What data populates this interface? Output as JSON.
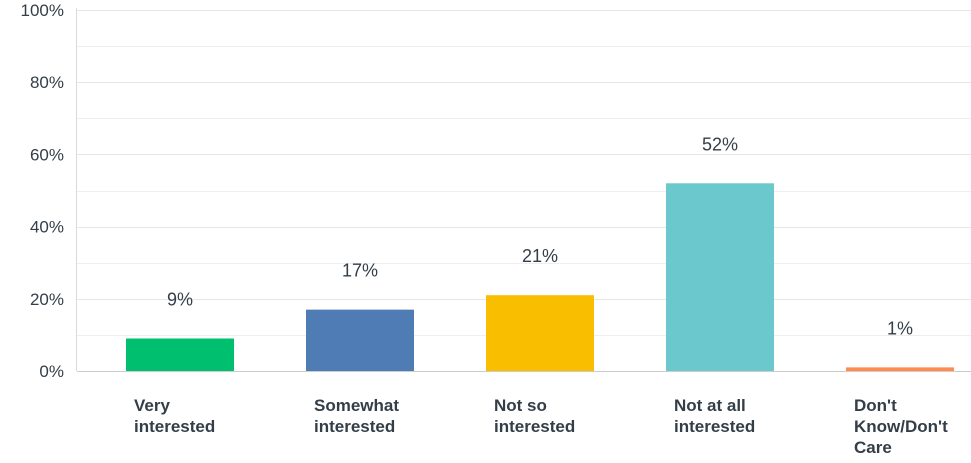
{
  "chart_data": {
    "type": "bar",
    "categories": [
      [
        "Very",
        "interested"
      ],
      [
        "Somewhat",
        "interested"
      ],
      [
        "Not so",
        "interested"
      ],
      [
        "Not at all",
        "interested"
      ],
      [
        "Don't",
        "Know/Don't",
        "Care"
      ]
    ],
    "values": [
      9,
      17,
      21,
      52,
      1
    ],
    "value_labels": [
      "9%",
      "17%",
      "21%",
      "52%",
      "1%"
    ],
    "colors": [
      "#00bf6f",
      "#507cb6",
      "#f9be00",
      "#6bc8cd",
      "#ff8b4f"
    ],
    "ylim": [
      0,
      100
    ],
    "y_ticks": [
      0,
      20,
      40,
      60,
      80,
      100
    ],
    "y_tick_labels": [
      "0%",
      "20%",
      "40%",
      "60%",
      "80%",
      "100%"
    ],
    "minor_gridlines": [
      10,
      30,
      50,
      70,
      90
    ],
    "grid": true,
    "title": "",
    "xlabel": "",
    "ylabel": ""
  }
}
